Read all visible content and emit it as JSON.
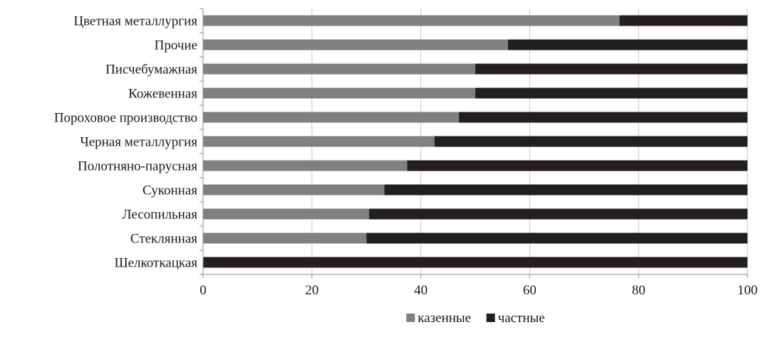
{
  "chart_data": {
    "type": "bar",
    "orientation": "horizontal",
    "stacked": true,
    "categories": [
      "Цветная металлургия",
      "Прочие",
      "Писчебумажная",
      "Кожевенная",
      "Пороховое производство",
      "Черная металлургия",
      "Полотняно-парусная",
      "Суконная",
      "Лесопильная",
      "Стеклянная",
      "Шелкоткацкая"
    ],
    "series": [
      {
        "name": "казенные",
        "color": "#808080",
        "values": [
          76.5,
          56,
          50,
          50,
          47,
          42.5,
          37.5,
          33.3,
          30.5,
          30,
          0
        ]
      },
      {
        "name": "частные",
        "color": "#231f20",
        "values": [
          23.5,
          44,
          50,
          50,
          53,
          57.5,
          62.5,
          66.7,
          69.5,
          70,
          100
        ]
      }
    ],
    "xlim": [
      0,
      100
    ],
    "xticks": [
      "0",
      "20",
      "40",
      "60",
      "80",
      "100"
    ],
    "grid": "vertical",
    "legend": "bottom-center"
  }
}
